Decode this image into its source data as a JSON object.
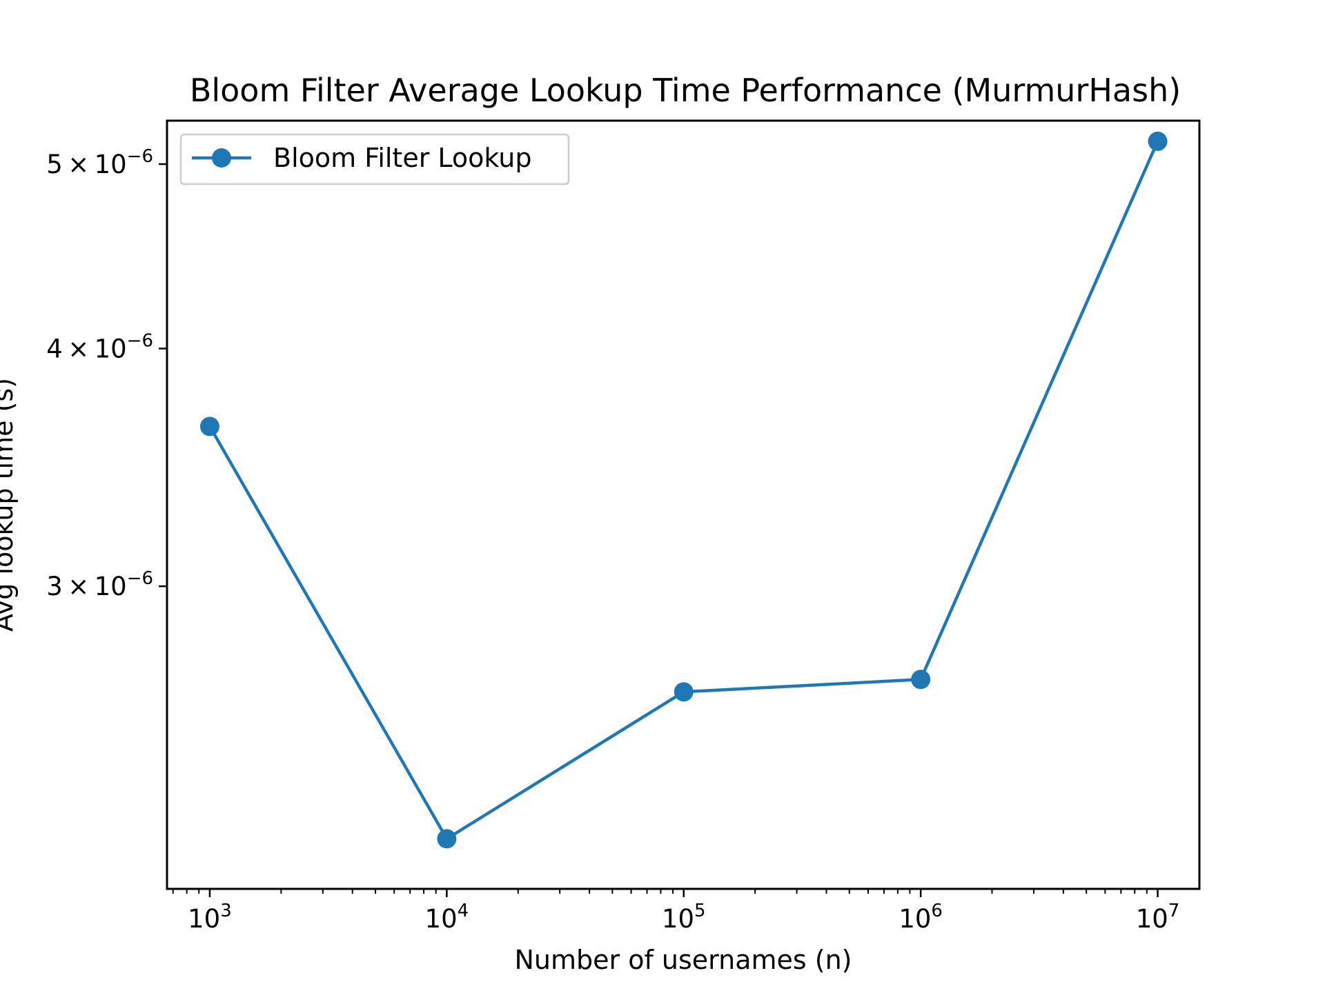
{
  "chart_data": {
    "type": "line",
    "title": "Bloom Filter Average Lookup Time Performance (MurmurHash)",
    "xlabel": "Number of usernames (n)",
    "ylabel": "Avg lookup time (s)",
    "xscale": "log",
    "yscale": "log",
    "xlim": [
      660,
      15000000
    ],
    "ylim": [
      2.08e-06,
      5.27e-06
    ],
    "x_ticks": [
      {
        "value": 1000,
        "base": "10",
        "exp": "3"
      },
      {
        "value": 10000,
        "base": "10",
        "exp": "4"
      },
      {
        "value": 100000,
        "base": "10",
        "exp": "5"
      },
      {
        "value": 1000000,
        "base": "10",
        "exp": "6"
      },
      {
        "value": 10000000,
        "base": "10",
        "exp": "7"
      }
    ],
    "y_ticks": [
      {
        "value": 3e-06,
        "mant": "3",
        "times": "×",
        "base": "10",
        "exp": "−6"
      },
      {
        "value": 4e-06,
        "mant": "4",
        "times": "×",
        "base": "10",
        "exp": "−6"
      },
      {
        "value": 5e-06,
        "mant": "5",
        "times": "×",
        "base": "10",
        "exp": "−6"
      }
    ],
    "grid": false,
    "legend_position": "top-left",
    "series": [
      {
        "name": "Bloom Filter Lookup",
        "color": "#1f77b4",
        "marker": "circle",
        "x": [
          1000,
          10000,
          100000,
          1000000,
          10000000
        ],
        "y": [
          3.64e-06,
          2.21e-06,
          2.64e-06,
          2.68e-06,
          5.14e-06
        ]
      }
    ]
  }
}
